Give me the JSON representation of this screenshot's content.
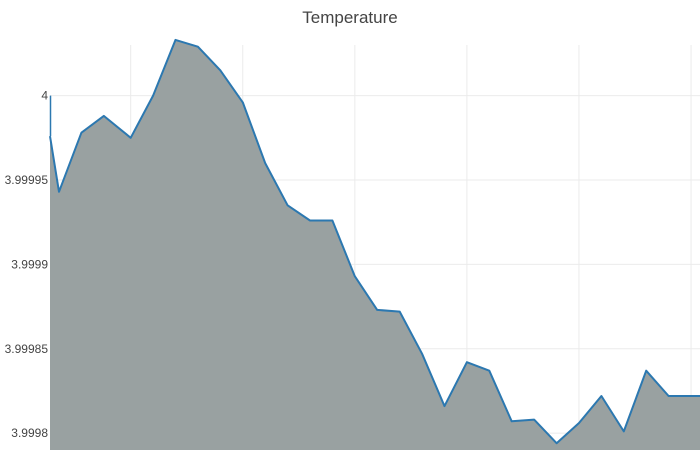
{
  "chart_data": {
    "type": "area",
    "title": "Temperature",
    "xlabel": "",
    "ylabel": "",
    "ylim": [
      3.99979,
      4.00003
    ],
    "xlim": [
      0,
      29
    ],
    "y_ticks": [
      3.9998,
      3.99985,
      3.9999,
      3.99995,
      4
    ],
    "y_tick_labels": [
      "3.9998",
      "3.99985",
      "3.9999",
      "3.99995",
      "4"
    ],
    "x_gridlines": [
      3.6,
      8.6,
      13.6,
      18.6,
      23.6,
      28.6
    ],
    "grid": true,
    "legend": "none",
    "series": [
      {
        "x": [
          0,
          0.4,
          1.4,
          2.4,
          3.6,
          4.6,
          5.6,
          6.6,
          7.6,
          8.6,
          9.6,
          10.6,
          11.6,
          12.6,
          13.6,
          14.6,
          15.6,
          16.6,
          17.6,
          18.6,
          19.6,
          20.6,
          21.6,
          22.6,
          23.6,
          24.6,
          25.6,
          26.6,
          27.6,
          28.6,
          29
        ],
        "values": [
          3.999976,
          3.999943,
          3.999978,
          3.999988,
          3.999975,
          4.0,
          4.000033,
          4.000029,
          4.000015,
          3.999996,
          3.99996,
          3.999935,
          3.999926,
          3.999926,
          3.999893,
          3.999873,
          3.999872,
          3.999847,
          3.999816,
          3.999842,
          3.999837,
          3.999807,
          3.999808,
          3.999794,
          3.999806,
          3.999822,
          3.999801,
          3.999837,
          3.999822,
          3.999822,
          3.999822
        ]
      }
    ],
    "colors": {
      "line": "#2c78b0",
      "fill": "#99a1a1",
      "grid": "#ebebeb",
      "axis_line": "#2c78b0",
      "text": "#444444"
    }
  }
}
